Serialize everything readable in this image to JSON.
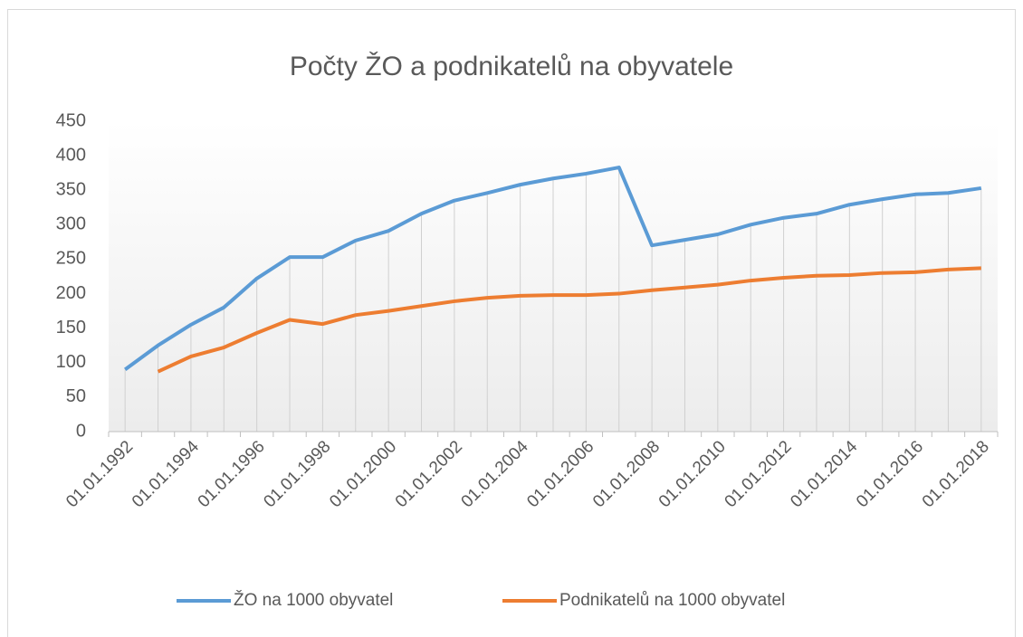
{
  "chart_data": {
    "type": "line",
    "title": "Počty ŽO a podnikatelů  na obyvatele",
    "categories": [
      "01.01.1992",
      null,
      "01.01.1994",
      null,
      "01.01.1996",
      null,
      "01.01.1998",
      null,
      "01.01.2000",
      null,
      "01.01.2002",
      null,
      "01.01.2004",
      null,
      "01.01.2006",
      null,
      "01.01.2008",
      null,
      "01.01.2010",
      null,
      "01.01.2012",
      null,
      "01.01.2014",
      null,
      "01.01.2016",
      null,
      "01.01.2018"
    ],
    "series": [
      {
        "name": "ŽO na 1000 obyvatel",
        "color": "#5b9bd5",
        "values": [
          90,
          125,
          155,
          180,
          222,
          253,
          253,
          277,
          291,
          316,
          335,
          346,
          358,
          367,
          374,
          383,
          270,
          278,
          286,
          300,
          310,
          316,
          329,
          337,
          344,
          346,
          353
        ]
      },
      {
        "name": "Podnikatelů na 1000 obyvatel",
        "color": "#ed7d31",
        "values": [
          null,
          87,
          109,
          122,
          143,
          162,
          156,
          169,
          175,
          182,
          189,
          194,
          197,
          198,
          198,
          200,
          205,
          209,
          213,
          219,
          223,
          226,
          227,
          230,
          231,
          235,
          237
        ]
      }
    ],
    "ylim": [
      0,
      450
    ],
    "yticks": [
      0,
      50,
      100,
      150,
      200,
      250,
      300,
      350,
      400,
      450
    ]
  }
}
